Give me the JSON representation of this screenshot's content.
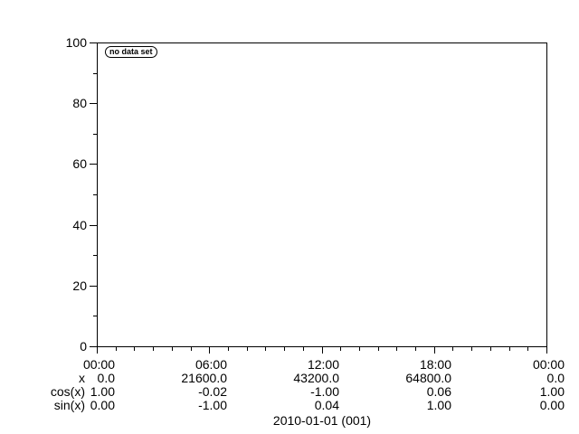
{
  "colors": {
    "foreground": "#000000",
    "background": "#ffffff"
  },
  "plot": {
    "legend_label": "no data set",
    "y_axis": {
      "tick_labels": [
        "100",
        "80",
        "60",
        "40",
        "20",
        "0"
      ]
    },
    "x_axis": {
      "tick_labels": [
        "00:00",
        "06:00",
        "12:00",
        "18:00",
        "00:00"
      ]
    }
  },
  "table": {
    "row_labels": [
      "x",
      "cos(x)",
      "sin(x)"
    ],
    "columns": [
      {
        "tick": "00:00",
        "x": "0.0",
        "cos": "1.00",
        "sin": "0.00"
      },
      {
        "tick": "06:00",
        "x": "21600.0",
        "cos": "-0.02",
        "sin": "-1.00"
      },
      {
        "tick": "12:00",
        "x": "43200.0",
        "cos": "-1.00",
        "sin": "0.04"
      },
      {
        "tick": "18:00",
        "x": "64800.0",
        "cos": "0.06",
        "sin": "1.00"
      },
      {
        "tick": "00:00",
        "x": "0.0",
        "cos": "1.00",
        "sin": "0.00"
      }
    ]
  },
  "footer": {
    "date_label": "2010-01-01 (001)"
  },
  "chart_data": {
    "type": "line",
    "title": "",
    "xlabel": "",
    "ylabel": "",
    "legend": [
      "no data set"
    ],
    "series": [],
    "ylim": [
      0,
      100
    ],
    "y_major_ticks": [
      0,
      20,
      40,
      60,
      80,
      100
    ],
    "y_minor_tick_step": 10,
    "x_range_seconds": [
      0,
      86400
    ],
    "x_major_ticks_seconds": [
      0,
      21600,
      43200,
      64800,
      86400
    ],
    "x_tick_labels": [
      "00:00",
      "06:00",
      "12:00",
      "18:00",
      "00:00"
    ],
    "x_minor_tick_step_seconds": 3600,
    "grid": false,
    "legend_position": "top-left",
    "readout_table": {
      "x": [
        0.0,
        21600.0,
        43200.0,
        64800.0,
        0.0
      ],
      "cos(x)": [
        1.0,
        -0.02,
        -1.0,
        0.06,
        1.0
      ],
      "sin(x)": [
        0.0,
        -1.0,
        0.04,
        1.0,
        0.0
      ]
    },
    "date_annotation": "2010-01-01 (001)"
  }
}
